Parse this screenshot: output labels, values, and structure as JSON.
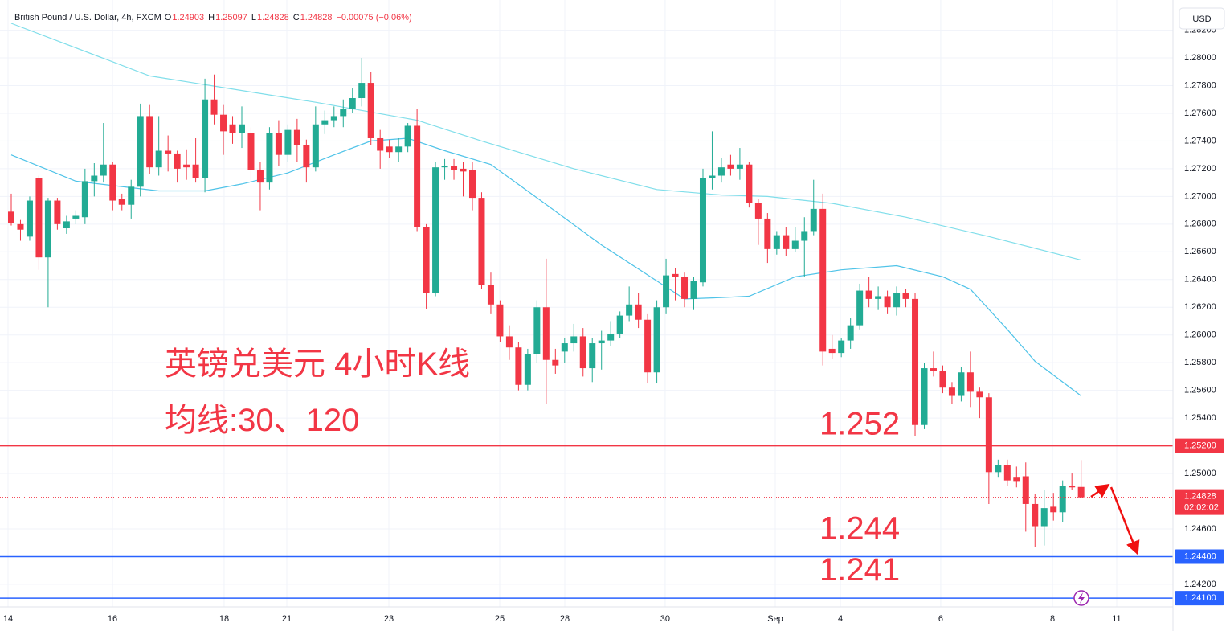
{
  "chart_data": {
    "type": "candlestick",
    "title": "British Pound / U.S. Dollar, 4h, FXCM",
    "header_labels": [
      "O",
      "H",
      "L",
      "C"
    ],
    "change": "−0.00075 (−0.06%)",
    "currency": "USD",
    "countdown": "02:02:02",
    "up_color": "#22ab94",
    "down_color": "#f23645",
    "xlim": [
      -1.2195,
      125.96
    ],
    "ylim": [
      1.24037,
      1.28418
    ],
    "grid": true,
    "xticks": [
      {
        "value": -0.35,
        "label": "14"
      },
      {
        "value": 10.98,
        "label": "16"
      },
      {
        "value": 23.08,
        "label": "18"
      },
      {
        "value": 29.88,
        "label": "21"
      },
      {
        "value": 40.94,
        "label": "23"
      },
      {
        "value": 52.96,
        "label": "25"
      },
      {
        "value": 60.02,
        "label": "28"
      },
      {
        "value": 70.9,
        "label": "30"
      },
      {
        "value": 82.84,
        "label": "Sep"
      },
      {
        "value": 89.9,
        "label": "4"
      },
      {
        "value": 100.78,
        "label": "6"
      },
      {
        "value": 112.9,
        "label": "8"
      },
      {
        "value": 119.86,
        "label": "11"
      }
    ],
    "yticks": [
      {
        "value": 1.282,
        "label": "1.28200"
      },
      {
        "value": 1.28,
        "label": "1.28000"
      },
      {
        "value": 1.278,
        "label": "1.27800"
      },
      {
        "value": 1.276,
        "label": "1.27600"
      },
      {
        "value": 1.274,
        "label": "1.27400"
      },
      {
        "value": 1.272,
        "label": "1.27200"
      },
      {
        "value": 1.27,
        "label": "1.27000"
      },
      {
        "value": 1.268,
        "label": "1.26800"
      },
      {
        "value": 1.266,
        "label": "1.26600"
      },
      {
        "value": 1.264,
        "label": "1.26400"
      },
      {
        "value": 1.262,
        "label": "1.26200"
      },
      {
        "value": 1.26,
        "label": "1.26000"
      },
      {
        "value": 1.258,
        "label": "1.25800"
      },
      {
        "value": 1.256,
        "label": "1.25600"
      },
      {
        "value": 1.254,
        "label": "1.25400"
      },
      {
        "value": 1.25,
        "label": "1.25000"
      },
      {
        "value": 1.246,
        "label": "1.24600"
      },
      {
        "value": 1.242,
        "label": "1.24200"
      }
    ],
    "levels": [
      {
        "value": 1.252,
        "label": "1.25200",
        "color": "#f23645"
      },
      {
        "value": 1.244,
        "label": "1.24400",
        "color": "#2962ff"
      },
      {
        "value": 1.241,
        "label": "1.24100",
        "color": "#2962ff"
      }
    ],
    "annotations": [
      "英镑兑美元 4小时K线",
      "均线:30、120"
    ],
    "moving_averages": [
      {
        "color": "#4fc3e8",
        "x": [
          0,
          7,
          16,
          21,
          25,
          30,
          35,
          39,
          43,
          47,
          52,
          57,
          64,
          70,
          73,
          77,
          80,
          85,
          90,
          96,
          101,
          104,
          108,
          111,
          116
        ],
        "values": [
          1.273,
          1.2711,
          1.2704,
          1.2704,
          1.2709,
          1.2717,
          1.273,
          1.274,
          1.2742,
          1.2733,
          1.2723,
          1.2699,
          1.2665,
          1.2639,
          1.2626,
          1.2627,
          1.2628,
          1.2642,
          1.2647,
          1.265,
          1.2642,
          1.2633,
          1.2604,
          1.2581,
          1.2556
        ]
      },
      {
        "color": "#80deea",
        "x": [
          0,
          15,
          33,
          44,
          51,
          61,
          70,
          77,
          82,
          89,
          97,
          106,
          116
        ],
        "values": [
          1.2825,
          1.2787,
          1.2768,
          1.2755,
          1.274,
          1.272,
          1.2705,
          1.2701,
          1.27,
          1.2695,
          1.2685,
          1.2671,
          1.2654
        ]
      }
    ],
    "candles": [
      [
        1.2689,
        1.2702,
        1.2679,
        1.2681
      ],
      [
        1.268,
        1.2683,
        1.2668,
        1.2676
      ],
      [
        1.2671,
        1.27,
        1.2668,
        1.2697
      ],
      [
        1.2713,
        1.2715,
        1.2647,
        1.2656
      ],
      [
        1.2656,
        1.2699,
        1.262,
        1.2697
      ],
      [
        1.2697,
        1.2699,
        1.2676,
        1.268
      ],
      [
        1.2677,
        1.2686,
        1.2673,
        1.2682
      ],
      [
        1.2684,
        1.269,
        1.268,
        1.2686
      ],
      [
        1.2685,
        1.272,
        1.268,
        1.2711
      ],
      [
        1.2711,
        1.2724,
        1.27,
        1.2715
      ],
      [
        1.2715,
        1.2753,
        1.271,
        1.2723
      ],
      [
        1.2723,
        1.2725,
        1.269,
        1.2697
      ],
      [
        1.2698,
        1.2702,
        1.269,
        1.2694
      ],
      [
        1.2694,
        1.2712,
        1.2684,
        1.2707
      ],
      [
        1.2707,
        1.2767,
        1.27,
        1.2758
      ],
      [
        1.2758,
        1.2766,
        1.2716,
        1.2721
      ],
      [
        1.2721,
        1.2758,
        1.2715,
        1.2733
      ],
      [
        1.2733,
        1.2744,
        1.2718,
        1.2731
      ],
      [
        1.2731,
        1.2733,
        1.271,
        1.272
      ],
      [
        1.2723,
        1.2734,
        1.2712,
        1.2721
      ],
      [
        1.2723,
        1.2742,
        1.271,
        1.2713
      ],
      [
        1.2713,
        1.2785,
        1.2703,
        1.277
      ],
      [
        1.277,
        1.2788,
        1.2752,
        1.2759
      ],
      [
        1.2759,
        1.2766,
        1.273,
        1.2747
      ],
      [
        1.2752,
        1.2758,
        1.2738,
        1.2746
      ],
      [
        1.2746,
        1.2765,
        1.2735,
        1.2752
      ],
      [
        1.2746,
        1.275,
        1.271,
        1.2719
      ],
      [
        1.2719,
        1.2725,
        1.269,
        1.271
      ],
      [
        1.271,
        1.275,
        1.2705,
        1.2746
      ],
      [
        1.2746,
        1.2755,
        1.2722,
        1.273
      ],
      [
        1.273,
        1.2752,
        1.2725,
        1.2748
      ],
      [
        1.2748,
        1.2756,
        1.2725,
        1.2737
      ],
      [
        1.2737,
        1.2741,
        1.271,
        1.2721
      ],
      [
        1.2721,
        1.2765,
        1.2718,
        1.2752
      ],
      [
        1.2752,
        1.2762,
        1.2745,
        1.2755
      ],
      [
        1.2755,
        1.2765,
        1.275,
        1.2758
      ],
      [
        1.2758,
        1.277,
        1.275,
        1.2763
      ],
      [
        1.2763,
        1.2778,
        1.276,
        1.2771
      ],
      [
        1.2771,
        1.28,
        1.2765,
        1.2782
      ],
      [
        1.2782,
        1.279,
        1.2737,
        1.2742
      ],
      [
        1.2742,
        1.2748,
        1.272,
        1.2733
      ],
      [
        1.2736,
        1.2741,
        1.2728,
        1.2732
      ],
      [
        1.2732,
        1.2742,
        1.2725,
        1.2736
      ],
      [
        1.2736,
        1.2753,
        1.2732,
        1.2751
      ],
      [
        1.2751,
        1.2763,
        1.2675,
        1.2678
      ],
      [
        1.2678,
        1.268,
        1.2619,
        1.263
      ],
      [
        1.263,
        1.2725,
        1.2628,
        1.2721
      ],
      [
        1.2721,
        1.2727,
        1.2712,
        1.2722
      ],
      [
        1.2722,
        1.2727,
        1.2712,
        1.2719
      ],
      [
        1.272,
        1.2725,
        1.27,
        1.2718
      ],
      [
        1.2719,
        1.2725,
        1.269,
        1.2699
      ],
      [
        1.2699,
        1.2703,
        1.2633,
        1.2636
      ],
      [
        1.2636,
        1.2645,
        1.2615,
        1.2622
      ],
      [
        1.2622,
        1.2625,
        1.2595,
        1.2599
      ],
      [
        1.2599,
        1.2607,
        1.2582,
        1.2591
      ],
      [
        1.2591,
        1.2595,
        1.256,
        1.2564
      ],
      [
        1.2564,
        1.259,
        1.256,
        1.2586
      ],
      [
        1.2586,
        1.2625,
        1.258,
        1.262
      ],
      [
        1.262,
        1.2655,
        1.255,
        1.2582
      ],
      [
        1.2582,
        1.259,
        1.2572,
        1.2578
      ],
      [
        1.2588,
        1.2598,
        1.258,
        1.2594
      ],
      [
        1.2594,
        1.2608,
        1.2588,
        1.2599
      ],
      [
        1.2599,
        1.2605,
        1.257,
        1.2576
      ],
      [
        1.2576,
        1.2598,
        1.2566,
        1.2594
      ],
      [
        1.2594,
        1.2603,
        1.2575,
        1.2596
      ],
      [
        1.2596,
        1.261,
        1.2592,
        1.2601
      ],
      [
        1.2601,
        1.2617,
        1.2598,
        1.2614
      ],
      [
        1.2614,
        1.2635,
        1.261,
        1.2622
      ],
      [
        1.2622,
        1.263,
        1.2605,
        1.2611
      ],
      [
        1.2611,
        1.2615,
        1.2565,
        1.2573
      ],
      [
        1.2573,
        1.2625,
        1.2565,
        1.262
      ],
      [
        1.262,
        1.2655,
        1.2615,
        1.2643
      ],
      [
        1.2644,
        1.2648,
        1.2625,
        1.2642
      ],
      [
        1.2642,
        1.2645,
        1.262,
        1.2626
      ],
      [
        1.2626,
        1.2642,
        1.2618,
        1.2639
      ],
      [
        1.2638,
        1.272,
        1.2635,
        1.2713
      ],
      [
        1.2713,
        1.2747,
        1.2705,
        1.2715
      ],
      [
        1.2715,
        1.2728,
        1.271,
        1.2721
      ],
      [
        1.2723,
        1.273,
        1.2715,
        1.272
      ],
      [
        1.272,
        1.2735,
        1.2712,
        1.2723
      ],
      [
        1.2723,
        1.2725,
        1.2692,
        1.2695
      ],
      [
        1.2695,
        1.2698,
        1.2665,
        1.2684
      ],
      [
        1.2684,
        1.2688,
        1.2652,
        1.2662
      ],
      [
        1.2662,
        1.2675,
        1.2658,
        1.2672
      ],
      [
        1.2672,
        1.2678,
        1.2657,
        1.2662
      ],
      [
        1.2662,
        1.2678,
        1.266,
        1.2668
      ],
      [
        1.2668,
        1.2685,
        1.2642,
        1.2675
      ],
      [
        1.2675,
        1.2712,
        1.2672,
        1.2691
      ],
      [
        1.2691,
        1.2702,
        1.2578,
        1.2588
      ],
      [
        1.259,
        1.26,
        1.2583,
        1.2587
      ],
      [
        1.2587,
        1.2598,
        1.2584,
        1.2596
      ],
      [
        1.2596,
        1.2612,
        1.259,
        1.2607
      ],
      [
        1.2607,
        1.2637,
        1.2604,
        1.2632
      ],
      [
        1.2632,
        1.2642,
        1.262,
        1.2626
      ],
      [
        1.2626,
        1.2635,
        1.2618,
        1.2628
      ],
      [
        1.2628,
        1.2632,
        1.2615,
        1.262
      ],
      [
        1.262,
        1.2635,
        1.2614,
        1.263
      ],
      [
        1.263,
        1.2633,
        1.262,
        1.2626
      ],
      [
        1.2626,
        1.263,
        1.2527,
        1.2535
      ],
      [
        1.2535,
        1.258,
        1.2532,
        1.2576
      ],
      [
        1.2576,
        1.2588,
        1.257,
        1.2574
      ],
      [
        1.2574,
        1.2578,
        1.2558,
        1.2562
      ],
      [
        1.2562,
        1.2566,
        1.255,
        1.2556
      ],
      [
        1.2556,
        1.2577,
        1.2552,
        1.2573
      ],
      [
        1.2573,
        1.2588,
        1.2548,
        1.2559
      ],
      [
        1.2559,
        1.2562,
        1.254,
        1.2555
      ],
      [
        1.2555,
        1.2558,
        1.2478,
        1.2501
      ],
      [
        1.2501,
        1.251,
        1.2497,
        1.2506
      ],
      [
        1.2506,
        1.251,
        1.2491,
        1.2495
      ],
      [
        1.2497,
        1.2505,
        1.249,
        1.2494
      ],
      [
        1.2498,
        1.2508,
        1.2458,
        1.2478
      ],
      [
        1.2478,
        1.2485,
        1.2447,
        1.2462
      ],
      [
        1.2462,
        1.2488,
        1.2448,
        1.2475
      ],
      [
        1.2476,
        1.2486,
        1.2466,
        1.2472
      ],
      [
        1.2472,
        1.2495,
        1.2465,
        1.2491
      ],
      [
        1.2491,
        1.25,
        1.2488,
        1.249
      ],
      [
        1.24903,
        1.25097,
        1.24828,
        1.24828
      ]
    ]
  }
}
